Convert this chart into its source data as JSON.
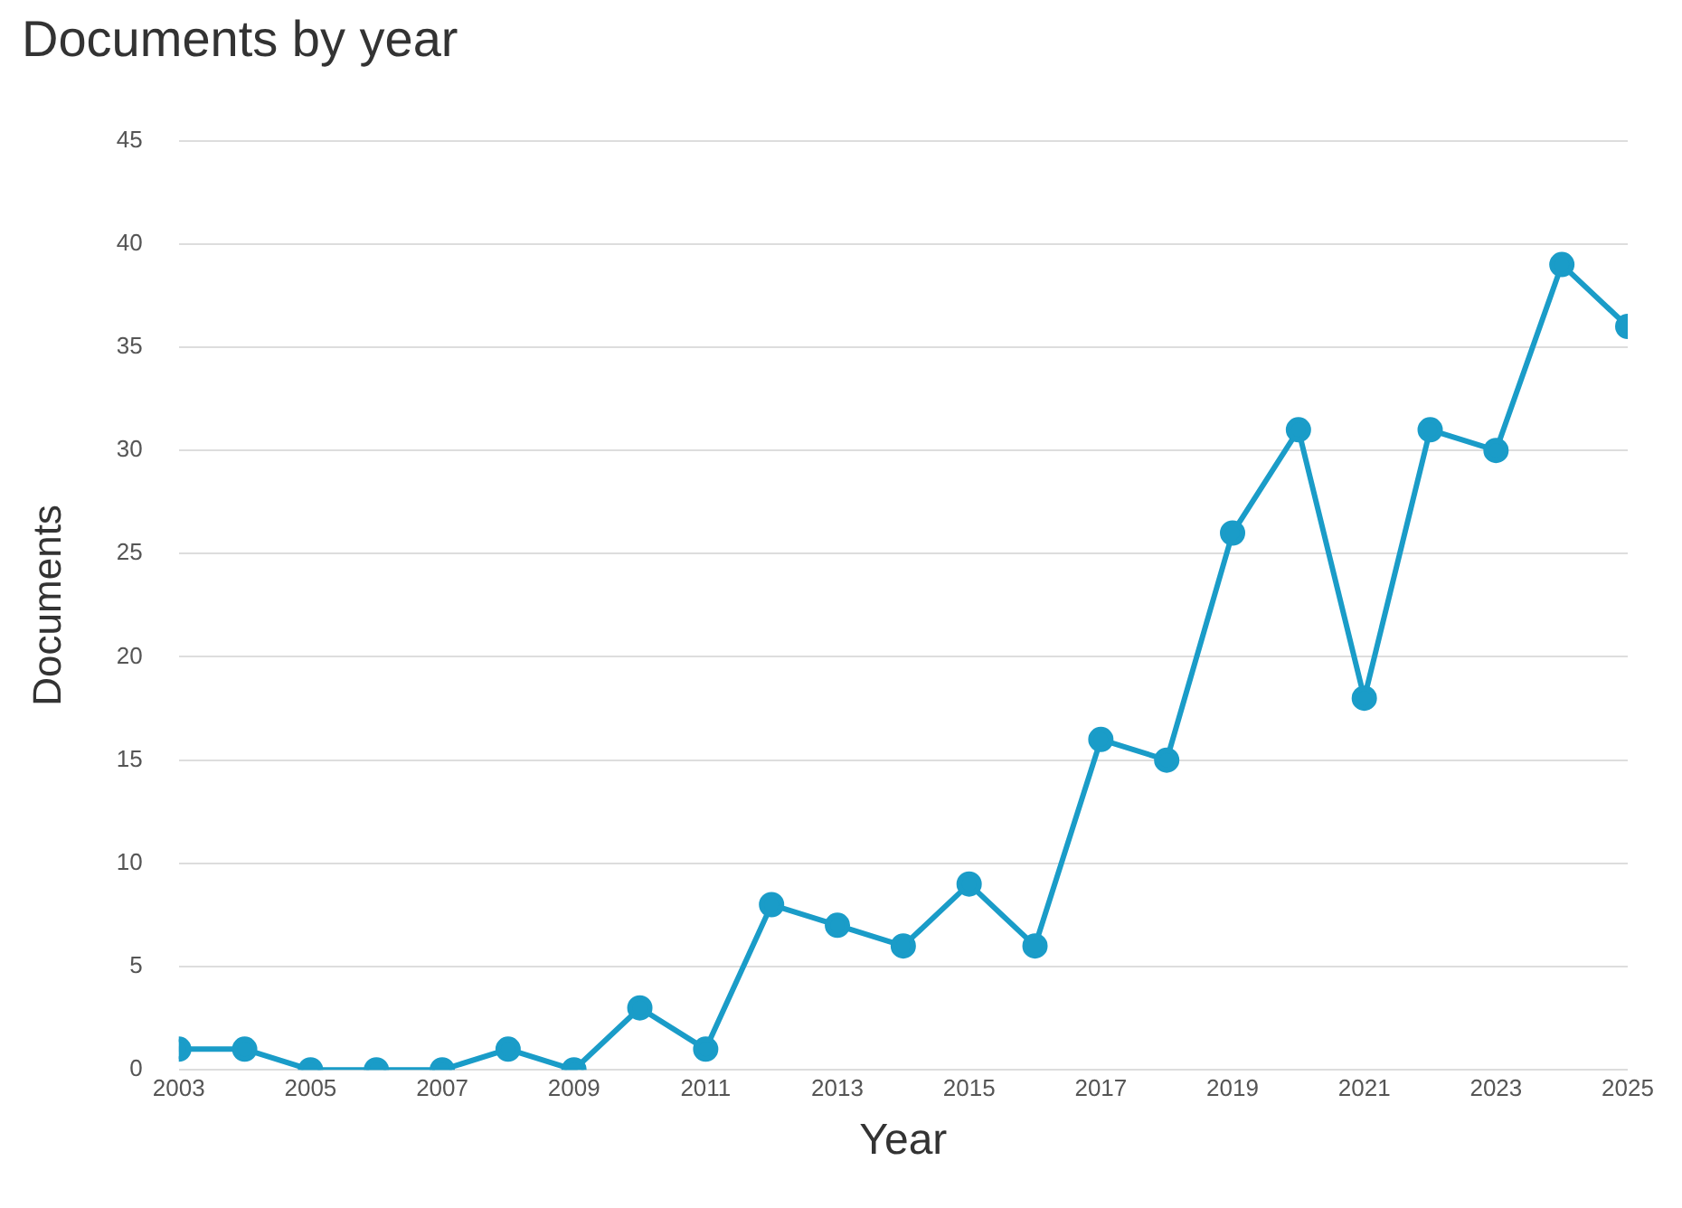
{
  "chart_data": {
    "type": "line",
    "title": "Documents by year",
    "xlabel": "Year",
    "ylabel": "Documents",
    "x": [
      2003,
      2004,
      2005,
      2006,
      2007,
      2008,
      2009,
      2010,
      2011,
      2012,
      2013,
      2014,
      2015,
      2016,
      2017,
      2018,
      2019,
      2020,
      2021,
      2022,
      2023,
      2024,
      2025
    ],
    "series": [
      {
        "color": "#1a9cc8",
        "values": [
          1,
          1,
          0,
          0,
          0,
          1,
          0,
          3,
          1,
          8,
          7,
          6,
          9,
          6,
          16,
          15,
          26,
          31,
          18,
          31,
          30,
          39,
          36
        ]
      }
    ],
    "xlim": [
      2003,
      2025
    ],
    "xticks": [
      2003,
      2005,
      2007,
      2009,
      2011,
      2013,
      2015,
      2017,
      2019,
      2021,
      2023,
      2025
    ],
    "ylim": [
      0,
      45
    ],
    "yticks": [
      0,
      5,
      10,
      15,
      20,
      25,
      30,
      35,
      40,
      45
    ],
    "grid": "y",
    "marker": "circle",
    "line_style": "solid",
    "legend": false
  }
}
